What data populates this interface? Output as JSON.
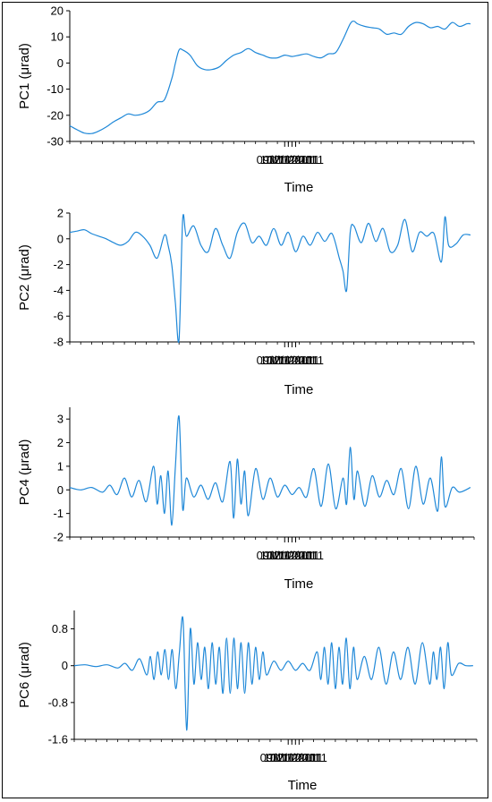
{
  "chart_data": [
    {
      "type": "line",
      "ylabel": "PC1 (μrad)",
      "xlabel": "Time",
      "ylim": [
        -30,
        20
      ],
      "yticks": [
        20,
        10,
        0,
        -10,
        -20,
        -30
      ],
      "xlim": [
        "2011-09-11",
        "2011-12-31"
      ],
      "xticks": [
        "09/11/2011",
        "10/11/2011",
        "11/11/2011",
        "12/11/2011"
      ],
      "colors": {
        "line": "#1f88d8"
      },
      "series": [
        {
          "x": [
            "2011-09-11",
            "2011-09-13",
            "2011-09-15",
            "2011-09-17",
            "2011-09-19",
            "2011-09-21",
            "2011-09-23",
            "2011-09-25",
            "2011-09-27",
            "2011-09-29",
            "2011-10-01",
            "2011-10-03",
            "2011-10-05",
            "2011-10-07",
            "2011-10-09",
            "2011-10-10",
            "2011-10-11",
            "2011-10-12",
            "2011-10-14",
            "2011-10-16",
            "2011-10-18",
            "2011-10-20",
            "2011-10-22",
            "2011-10-24",
            "2011-10-26",
            "2011-10-28",
            "2011-10-30",
            "2011-11-01",
            "2011-11-03",
            "2011-11-05",
            "2011-11-07",
            "2011-11-09",
            "2011-11-11",
            "2011-11-13",
            "2011-11-15",
            "2011-11-17",
            "2011-11-19",
            "2011-11-21",
            "2011-11-23",
            "2011-11-25",
            "2011-11-27",
            "2011-11-28",
            "2011-11-29",
            "2011-12-01",
            "2011-12-03",
            "2011-12-05",
            "2011-12-07",
            "2011-12-09",
            "2011-12-11",
            "2011-12-13",
            "2011-12-15",
            "2011-12-17",
            "2011-12-19",
            "2011-12-21",
            "2011-12-23",
            "2011-12-25",
            "2011-12-27",
            "2011-12-29",
            "2011-12-30"
          ],
          "y": [
            -24,
            -25.5,
            -26.8,
            -27,
            -26,
            -24.5,
            -22.5,
            -21,
            -19.5,
            -20,
            -19.5,
            -18,
            -15,
            -14,
            -6,
            0,
            5,
            5,
            3,
            -1,
            -2.5,
            -2.5,
            -1.5,
            1,
            3,
            4,
            5.5,
            4,
            3,
            2,
            2,
            3,
            2.5,
            3,
            3.5,
            2.5,
            2,
            3.5,
            4,
            9,
            15,
            16,
            15,
            14,
            13.5,
            13,
            11,
            11.5,
            11,
            14,
            15.5,
            15,
            13.5,
            14,
            13,
            15.5,
            14,
            15,
            15
          ]
        }
      ]
    },
    {
      "type": "line",
      "ylabel": "PC2 (μrad)",
      "xlabel": "Time",
      "ylim": [
        -8,
        2
      ],
      "yticks": [
        2,
        0,
        -2,
        -4,
        -6,
        -8
      ],
      "xlim": [
        "2011-09-11",
        "2011-12-31"
      ],
      "xticks": [
        "09/11/2011",
        "10/11/2011",
        "11/11/2011",
        "12/11/2011"
      ],
      "colors": {
        "line": "#1f88d8"
      },
      "series": [
        {
          "x": [
            "2011-09-11",
            "2011-09-13",
            "2011-09-15",
            "2011-09-17",
            "2011-09-19",
            "2011-09-21",
            "2011-09-23",
            "2011-09-25",
            "2011-09-27",
            "2011-09-29",
            "2011-10-01",
            "2011-10-03",
            "2011-10-05",
            "2011-10-07",
            "2011-10-08",
            "2011-10-09",
            "2011-10-10",
            "2011-10-11",
            "2011-10-12",
            "2011-10-13",
            "2011-10-15",
            "2011-10-17",
            "2011-10-19",
            "2011-10-21",
            "2011-10-23",
            "2011-10-25",
            "2011-10-27",
            "2011-10-29",
            "2011-10-31",
            "2011-11-02",
            "2011-11-04",
            "2011-11-06",
            "2011-11-08",
            "2011-11-10",
            "2011-11-12",
            "2011-11-14",
            "2011-11-16",
            "2011-11-18",
            "2011-11-20",
            "2011-11-22",
            "2011-11-24",
            "2011-11-25",
            "2011-11-26",
            "2011-11-27",
            "2011-11-28",
            "2011-11-30",
            "2011-12-02",
            "2011-12-04",
            "2011-12-06",
            "2011-12-08",
            "2011-12-10",
            "2011-12-12",
            "2011-12-14",
            "2011-12-16",
            "2011-12-18",
            "2011-12-20",
            "2011-12-22",
            "2011-12-23",
            "2011-12-24",
            "2011-12-26",
            "2011-12-28",
            "2011-12-30"
          ],
          "y": [
            0.5,
            0.6,
            0.7,
            0.4,
            0.2,
            0,
            -0.3,
            -0.5,
            -0.2,
            0.5,
            0.2,
            -0.5,
            -1.5,
            0.3,
            -0.5,
            -2,
            -5,
            -7.8,
            1.5,
            0.2,
            1,
            -0.5,
            -1,
            0.8,
            -0.5,
            -1.5,
            0.5,
            1.2,
            -0.3,
            0.2,
            -0.5,
            0.8,
            -0.5,
            0.5,
            -1,
            0.2,
            -0.5,
            0.5,
            -0.2,
            0.4,
            -1.5,
            -2.5,
            -4,
            0.5,
            1,
            -0.3,
            1.2,
            -0.2,
            0.8,
            -1,
            -0.5,
            1.5,
            -1,
            0.5,
            0.2,
            0.4,
            -1.8,
            1.7,
            -0.5,
            -0.4,
            0.3,
            0.3
          ]
        }
      ]
    },
    {
      "type": "line",
      "ylabel": "PC4 (μrad)",
      "xlabel": "Time",
      "ylim": [
        -2,
        3.5
      ],
      "yticks": [
        3,
        2,
        1,
        0,
        -1,
        -2
      ],
      "xlim": [
        "2011-09-11",
        "2011-12-31"
      ],
      "xticks": [
        "09/11/2011",
        "10/11/2011",
        "11/11/2011",
        "12/11/2011"
      ],
      "colors": {
        "line": "#1f88d8"
      },
      "series": [
        {
          "x": [
            "2011-09-11",
            "2011-09-14",
            "2011-09-17",
            "2011-09-20",
            "2011-09-22",
            "2011-09-24",
            "2011-09-26",
            "2011-09-28",
            "2011-09-30",
            "2011-10-02",
            "2011-10-04",
            "2011-10-05",
            "2011-10-06",
            "2011-10-07",
            "2011-10-08",
            "2011-10-09",
            "2011-10-10",
            "2011-10-11",
            "2011-10-12",
            "2011-10-13",
            "2011-10-15",
            "2011-10-17",
            "2011-10-19",
            "2011-10-21",
            "2011-10-23",
            "2011-10-25",
            "2011-10-26",
            "2011-10-27",
            "2011-10-28",
            "2011-10-29",
            "2011-10-30",
            "2011-11-01",
            "2011-11-03",
            "2011-11-05",
            "2011-11-07",
            "2011-11-09",
            "2011-11-11",
            "2011-11-13",
            "2011-11-15",
            "2011-11-17",
            "2011-11-19",
            "2011-11-21",
            "2011-11-23",
            "2011-11-25",
            "2011-11-26",
            "2011-11-27",
            "2011-11-28",
            "2011-11-29",
            "2011-12-01",
            "2011-12-03",
            "2011-12-05",
            "2011-12-07",
            "2011-12-09",
            "2011-12-11",
            "2011-12-13",
            "2011-12-15",
            "2011-12-17",
            "2011-12-19",
            "2011-12-21",
            "2011-12-22",
            "2011-12-23",
            "2011-12-25",
            "2011-12-27",
            "2011-12-30"
          ],
          "y": [
            0.1,
            0,
            0.1,
            -0.1,
            0.2,
            -0.2,
            0.5,
            -0.3,
            0.4,
            -0.5,
            1,
            -0.6,
            0.6,
            -1,
            0.8,
            -1.5,
            1,
            3.1,
            -0.8,
            0.5,
            -0.3,
            0.2,
            -0.4,
            0.3,
            -0.5,
            1.2,
            -1.2,
            1.3,
            -0.6,
            0.8,
            -1.1,
            0.9,
            -0.4,
            0.5,
            -0.3,
            0.2,
            -0.2,
            0.1,
            -0.3,
            0.9,
            -0.7,
            1.1,
            -0.8,
            0.5,
            -0.6,
            1.8,
            -0.4,
            0.8,
            -0.7,
            0.6,
            -0.3,
            0.4,
            -0.2,
            0.9,
            -0.8,
            1.0,
            -0.6,
            0.5,
            -0.9,
            1.4,
            -0.7,
            0.1,
            -0.1,
            0.1
          ]
        }
      ]
    },
    {
      "type": "line",
      "ylabel": "PC6 (μrad)",
      "xlabel": "Time",
      "ylim": [
        -1.6,
        1.2
      ],
      "yticks": [
        0.8,
        0,
        -0.8,
        -1.6
      ],
      "xlim": [
        "2011-09-11",
        "2011-12-31"
      ],
      "xticks": [
        "09/11/2011",
        "10/11/2011",
        "11/11/2011",
        "12/11/2011"
      ],
      "colors": {
        "line": "#1f88d8"
      },
      "series": [
        {
          "x": [
            "2011-09-11",
            "2011-09-14",
            "2011-09-17",
            "2011-09-20",
            "2011-09-23",
            "2011-09-25",
            "2011-09-27",
            "2011-09-29",
            "2011-10-01",
            "2011-10-02",
            "2011-10-03",
            "2011-10-04",
            "2011-10-05",
            "2011-10-06",
            "2011-10-07",
            "2011-10-08",
            "2011-10-09",
            "2011-10-10",
            "2011-10-11",
            "2011-10-12",
            "2011-10-13",
            "2011-10-14",
            "2011-10-15",
            "2011-10-16",
            "2011-10-17",
            "2011-10-18",
            "2011-10-19",
            "2011-10-20",
            "2011-10-21",
            "2011-10-22",
            "2011-10-23",
            "2011-10-24",
            "2011-10-25",
            "2011-10-26",
            "2011-10-27",
            "2011-10-28",
            "2011-10-29",
            "2011-10-30",
            "2011-10-31",
            "2011-11-01",
            "2011-11-02",
            "2011-11-03",
            "2011-11-05",
            "2011-11-07",
            "2011-11-09",
            "2011-11-11",
            "2011-11-13",
            "2011-11-15",
            "2011-11-17",
            "2011-11-18",
            "2011-11-19",
            "2011-11-20",
            "2011-11-21",
            "2011-11-22",
            "2011-11-23",
            "2011-11-24",
            "2011-11-25",
            "2011-11-26",
            "2011-11-27",
            "2011-11-28",
            "2011-11-30",
            "2011-12-02",
            "2011-12-04",
            "2011-12-06",
            "2011-12-08",
            "2011-12-10",
            "2011-12-12",
            "2011-12-14",
            "2011-12-16",
            "2011-12-18",
            "2011-12-19",
            "2011-12-20",
            "2011-12-21",
            "2011-12-22",
            "2011-12-23",
            "2011-12-24",
            "2011-12-26",
            "2011-12-28",
            "2011-12-30"
          ],
          "y": [
            0,
            0.02,
            -0.02,
            0.02,
            -0.05,
            0.05,
            -0.1,
            0.15,
            -0.2,
            0.2,
            -0.3,
            0.3,
            -0.2,
            0.35,
            -0.3,
            0.35,
            -0.5,
            0.3,
            1.0,
            -1.4,
            0.8,
            -0.4,
            0.5,
            -0.3,
            0.4,
            -0.5,
            0.5,
            -0.4,
            0.4,
            -0.6,
            0.6,
            -0.6,
            0.6,
            -0.5,
            0.5,
            -0.6,
            0.5,
            -0.4,
            0.4,
            -0.3,
            0.3,
            -0.2,
            0.1,
            -0.1,
            0.1,
            -0.1,
            0.05,
            -0.1,
            0.3,
            -0.3,
            0.4,
            -0.4,
            0.5,
            -0.5,
            0.4,
            -0.4,
            0.6,
            -0.5,
            0.4,
            -0.3,
            0.2,
            -0.3,
            0.4,
            -0.4,
            0.3,
            -0.3,
            0.4,
            -0.4,
            0.5,
            -0.4,
            0.3,
            -0.3,
            0.4,
            -0.5,
            0.5,
            -0.2,
            0.05,
            0,
            0
          ]
        }
      ]
    }
  ]
}
